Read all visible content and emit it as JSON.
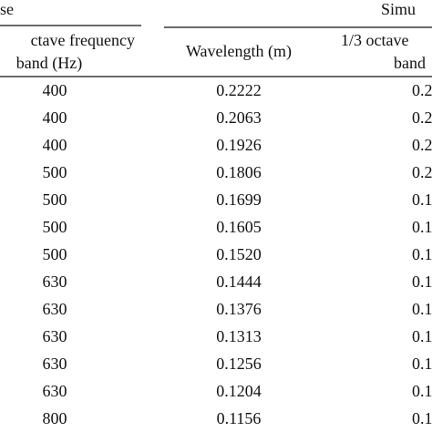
{
  "table": {
    "groups": [
      "se",
      "Simu"
    ],
    "columns": [
      [
        "ctave frequency",
        "band (Hz)"
      ],
      [
        "Wavelength (m)"
      ],
      [
        "1/3 octave",
        "band"
      ]
    ],
    "rows": [
      [
        "400",
        "0.2222",
        "0.2"
      ],
      [
        "400",
        "0.2063",
        "0.2"
      ],
      [
        "400",
        "0.1926",
        "0.2"
      ],
      [
        "500",
        "0.1806",
        "0.2"
      ],
      [
        "500",
        "0.1699",
        "0.1"
      ],
      [
        "500",
        "0.1605",
        "0.1"
      ],
      [
        "500",
        "0.1520",
        "0.1"
      ],
      [
        "630",
        "0.1444",
        "0.1"
      ],
      [
        "630",
        "0.1376",
        "0.1"
      ],
      [
        "630",
        "0.1313",
        "0.1"
      ],
      [
        "630",
        "0.1256",
        "0.1"
      ],
      [
        "630",
        "0.1204",
        "0.1"
      ],
      [
        "800",
        "0.1156",
        "0.1"
      ]
    ]
  }
}
